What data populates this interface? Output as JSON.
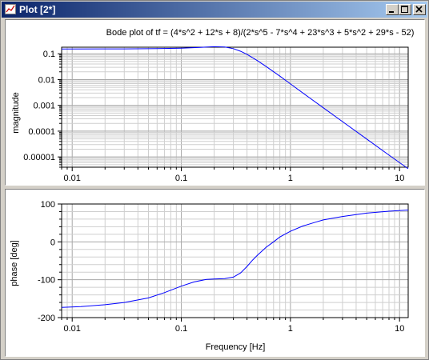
{
  "window": {
    "title": "Plot [2*]",
    "buttons": {
      "minimize": "minimize-icon",
      "maximize": "maximize-icon",
      "close": "close-icon"
    }
  },
  "chart_data": [
    {
      "type": "line",
      "title": "Bode plot of  tf = (4*s^2 + 12*s + 8)/(2*s^5 - 7*s^4 + 23*s^3 + 5*s^2 + 29*s - 52)",
      "xlabel": "",
      "ylabel": "magnitude",
      "xscale": "log",
      "yscale": "log",
      "xlim": [
        0.008,
        12
      ],
      "ylim": [
        4e-06,
        0.18
      ],
      "grid": true,
      "x_ticks": [
        "0.01",
        "0.1",
        "1",
        "10"
      ],
      "y_ticks": [
        "0.1",
        "0.01",
        "0.001",
        "0.0001",
        "0.00001"
      ],
      "line_color": "#0000ff",
      "series": [
        {
          "x": [
            0.008,
            0.03,
            0.06,
            0.1,
            0.15,
            0.2,
            0.25,
            0.3,
            0.35,
            0.4,
            0.5,
            0.6,
            0.8,
            1,
            1.5,
            2,
            3,
            5,
            8,
            12
          ],
          "y": [
            0.154,
            0.155,
            0.158,
            0.165,
            0.178,
            0.188,
            0.182,
            0.158,
            0.125,
            0.095,
            0.054,
            0.032,
            0.0136,
            0.0068,
            0.00195,
            0.00081,
            0.000235,
            4.95e-05,
            1.18e-05,
            3.5e-06
          ]
        }
      ]
    },
    {
      "type": "line",
      "xlabel": "Frequency [Hz]",
      "ylabel": "phase [deg]",
      "xscale": "log",
      "xlim": [
        0.008,
        12
      ],
      "ylim": [
        -200,
        100
      ],
      "grid": true,
      "x_ticks": [
        "0.01",
        "0.1",
        "1",
        "10"
      ],
      "y_ticks": [
        "100",
        "0",
        "-100",
        "-200"
      ],
      "line_color": "#0000ff",
      "series": [
        {
          "x": [
            0.008,
            0.012,
            0.02,
            0.03,
            0.05,
            0.07,
            0.1,
            0.13,
            0.17,
            0.2,
            0.25,
            0.3,
            0.35,
            0.4,
            0.45,
            0.5,
            0.6,
            0.7,
            0.8,
            1,
            1.3,
            1.7,
            2,
            3,
            5,
            8,
            12
          ],
          "y": [
            -173,
            -171,
            -166,
            -160,
            -148,
            -134,
            -117,
            -106,
            -99,
            -98,
            -97,
            -93,
            -82,
            -65,
            -48,
            -35,
            -14,
            0,
            13,
            28,
            42,
            52,
            58,
            67,
            76,
            81,
            84
          ]
        }
      ]
    }
  ]
}
